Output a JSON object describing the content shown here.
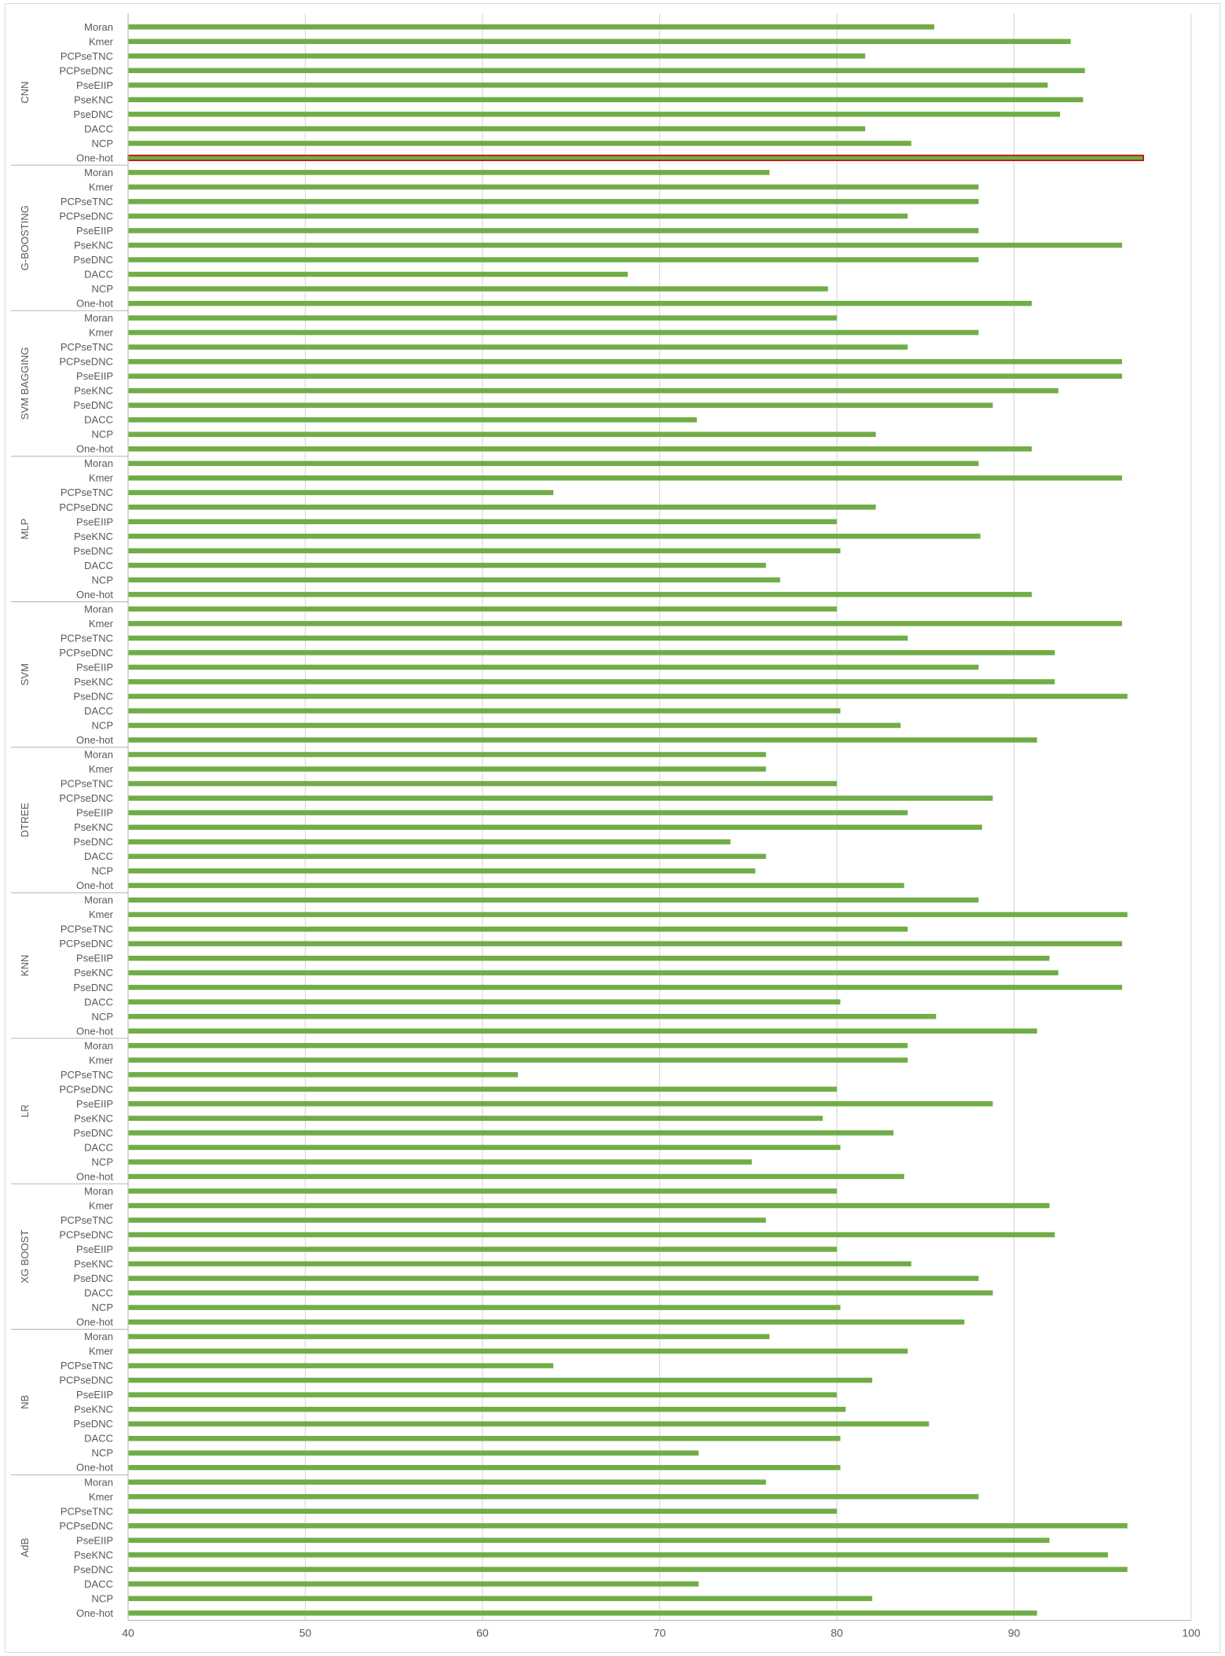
{
  "chart_data": {
    "type": "bar",
    "orientation": "horizontal",
    "title": "",
    "xlabel": "",
    "ylabel": "",
    "xlim": [
      40,
      100
    ],
    "x_ticks": [
      "40",
      "50",
      "60",
      "70",
      "80",
      "90",
      "100"
    ],
    "grid": true,
    "bar_color": "#70ad47",
    "highlight_color": "#c00000",
    "highlighted_bar": {
      "group": "CNN",
      "category": "One-hot"
    },
    "categories": [
      "Moran",
      "Kmer",
      "PCPseTNC",
      "PCPseDNC",
      "PseEIIP",
      "PseKNC",
      "PseDNC",
      "DACC",
      "NCP",
      "One-hot"
    ],
    "groups": [
      {
        "name": "CNN",
        "values": [
          85.5,
          93.2,
          81.6,
          94.0,
          91.9,
          93.9,
          92.6,
          81.6,
          84.2,
          97.3
        ]
      },
      {
        "name": "G-BOOSTING",
        "values": [
          76.2,
          88.0,
          88.0,
          84.0,
          88.0,
          96.1,
          88.0,
          68.2,
          79.5,
          91.0
        ]
      },
      {
        "name": "SVM BAGGING",
        "values": [
          80.0,
          88.0,
          84.0,
          96.1,
          96.1,
          92.5,
          88.8,
          72.1,
          82.2,
          91.0
        ]
      },
      {
        "name": "MLP",
        "values": [
          88.0,
          96.1,
          64.0,
          82.2,
          80.0,
          88.1,
          80.2,
          76.0,
          76.8,
          91.0
        ]
      },
      {
        "name": "SVM",
        "values": [
          80.0,
          96.1,
          84.0,
          92.3,
          88.0,
          92.3,
          96.4,
          80.2,
          83.6,
          91.3
        ]
      },
      {
        "name": "DTREE",
        "values": [
          76.0,
          76.0,
          80.0,
          88.8,
          84.0,
          88.2,
          74.0,
          76.0,
          75.4,
          83.8
        ]
      },
      {
        "name": "KNN",
        "values": [
          88.0,
          96.4,
          84.0,
          96.1,
          92.0,
          92.5,
          96.1,
          80.2,
          85.6,
          91.3
        ]
      },
      {
        "name": "LR",
        "values": [
          84.0,
          84.0,
          62.0,
          80.0,
          88.8,
          79.2,
          83.2,
          80.2,
          75.2,
          83.8
        ]
      },
      {
        "name": "XG BOOST",
        "values": [
          80.0,
          92.0,
          76.0,
          92.3,
          80.0,
          84.2,
          88.0,
          88.8,
          80.2,
          87.2
        ]
      },
      {
        "name": "NB",
        "values": [
          76.2,
          84.0,
          64.0,
          82.0,
          80.0,
          80.5,
          85.2,
          80.2,
          72.2,
          80.2
        ]
      },
      {
        "name": "AdB",
        "values": [
          76.0,
          88.0,
          80.0,
          96.4,
          92.0,
          95.3,
          96.4,
          72.2,
          82.0,
          91.3
        ]
      }
    ]
  }
}
